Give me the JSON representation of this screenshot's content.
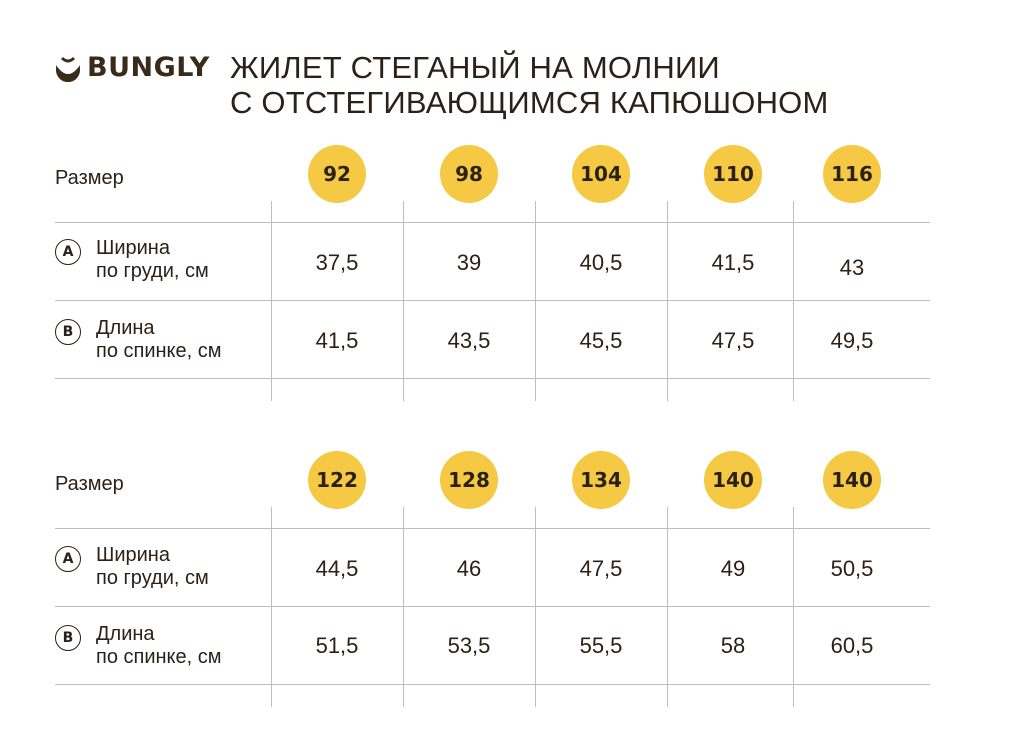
{
  "brand": {
    "name": "BUNGLY",
    "color": "#3a2a1a"
  },
  "title": {
    "line1": "ЖИЛЕТ СТЕГАНЫЙ НА МОЛНИИ",
    "line2": "С ОТСТЕГИВАЮЩИМСЯ КАПЮШОНОМ"
  },
  "colors": {
    "badge": "#f6c945",
    "text": "#2b2118",
    "rule": "#bdbdbd"
  },
  "tables": [
    {
      "size_label": "Размер",
      "sizes": [
        "92",
        "98",
        "104",
        "110",
        "116"
      ],
      "rows": [
        {
          "marker": "A",
          "label_line1": "Ширина",
          "label_line2": "по груди, см",
          "values": [
            "37,5",
            "39",
            "40,5",
            "41,5",
            "43"
          ]
        },
        {
          "marker": "B",
          "label_line1": "Длина",
          "label_line2": "по спинке, см",
          "values": [
            "41,5",
            "43,5",
            "45,5",
            "47,5",
            "49,5"
          ]
        }
      ]
    },
    {
      "size_label": "Размер",
      "sizes": [
        "122",
        "128",
        "134",
        "140",
        "140"
      ],
      "rows": [
        {
          "marker": "A",
          "label_line1": "Ширина",
          "label_line2": "по груди, см",
          "values": [
            "44,5",
            "46",
            "47,5",
            "49",
            "50,5"
          ]
        },
        {
          "marker": "B",
          "label_line1": "Длина",
          "label_line2": "по спинке, см",
          "values": [
            "51,5",
            "53,5",
            "55,5",
            "58",
            "60,5"
          ]
        }
      ]
    }
  ]
}
